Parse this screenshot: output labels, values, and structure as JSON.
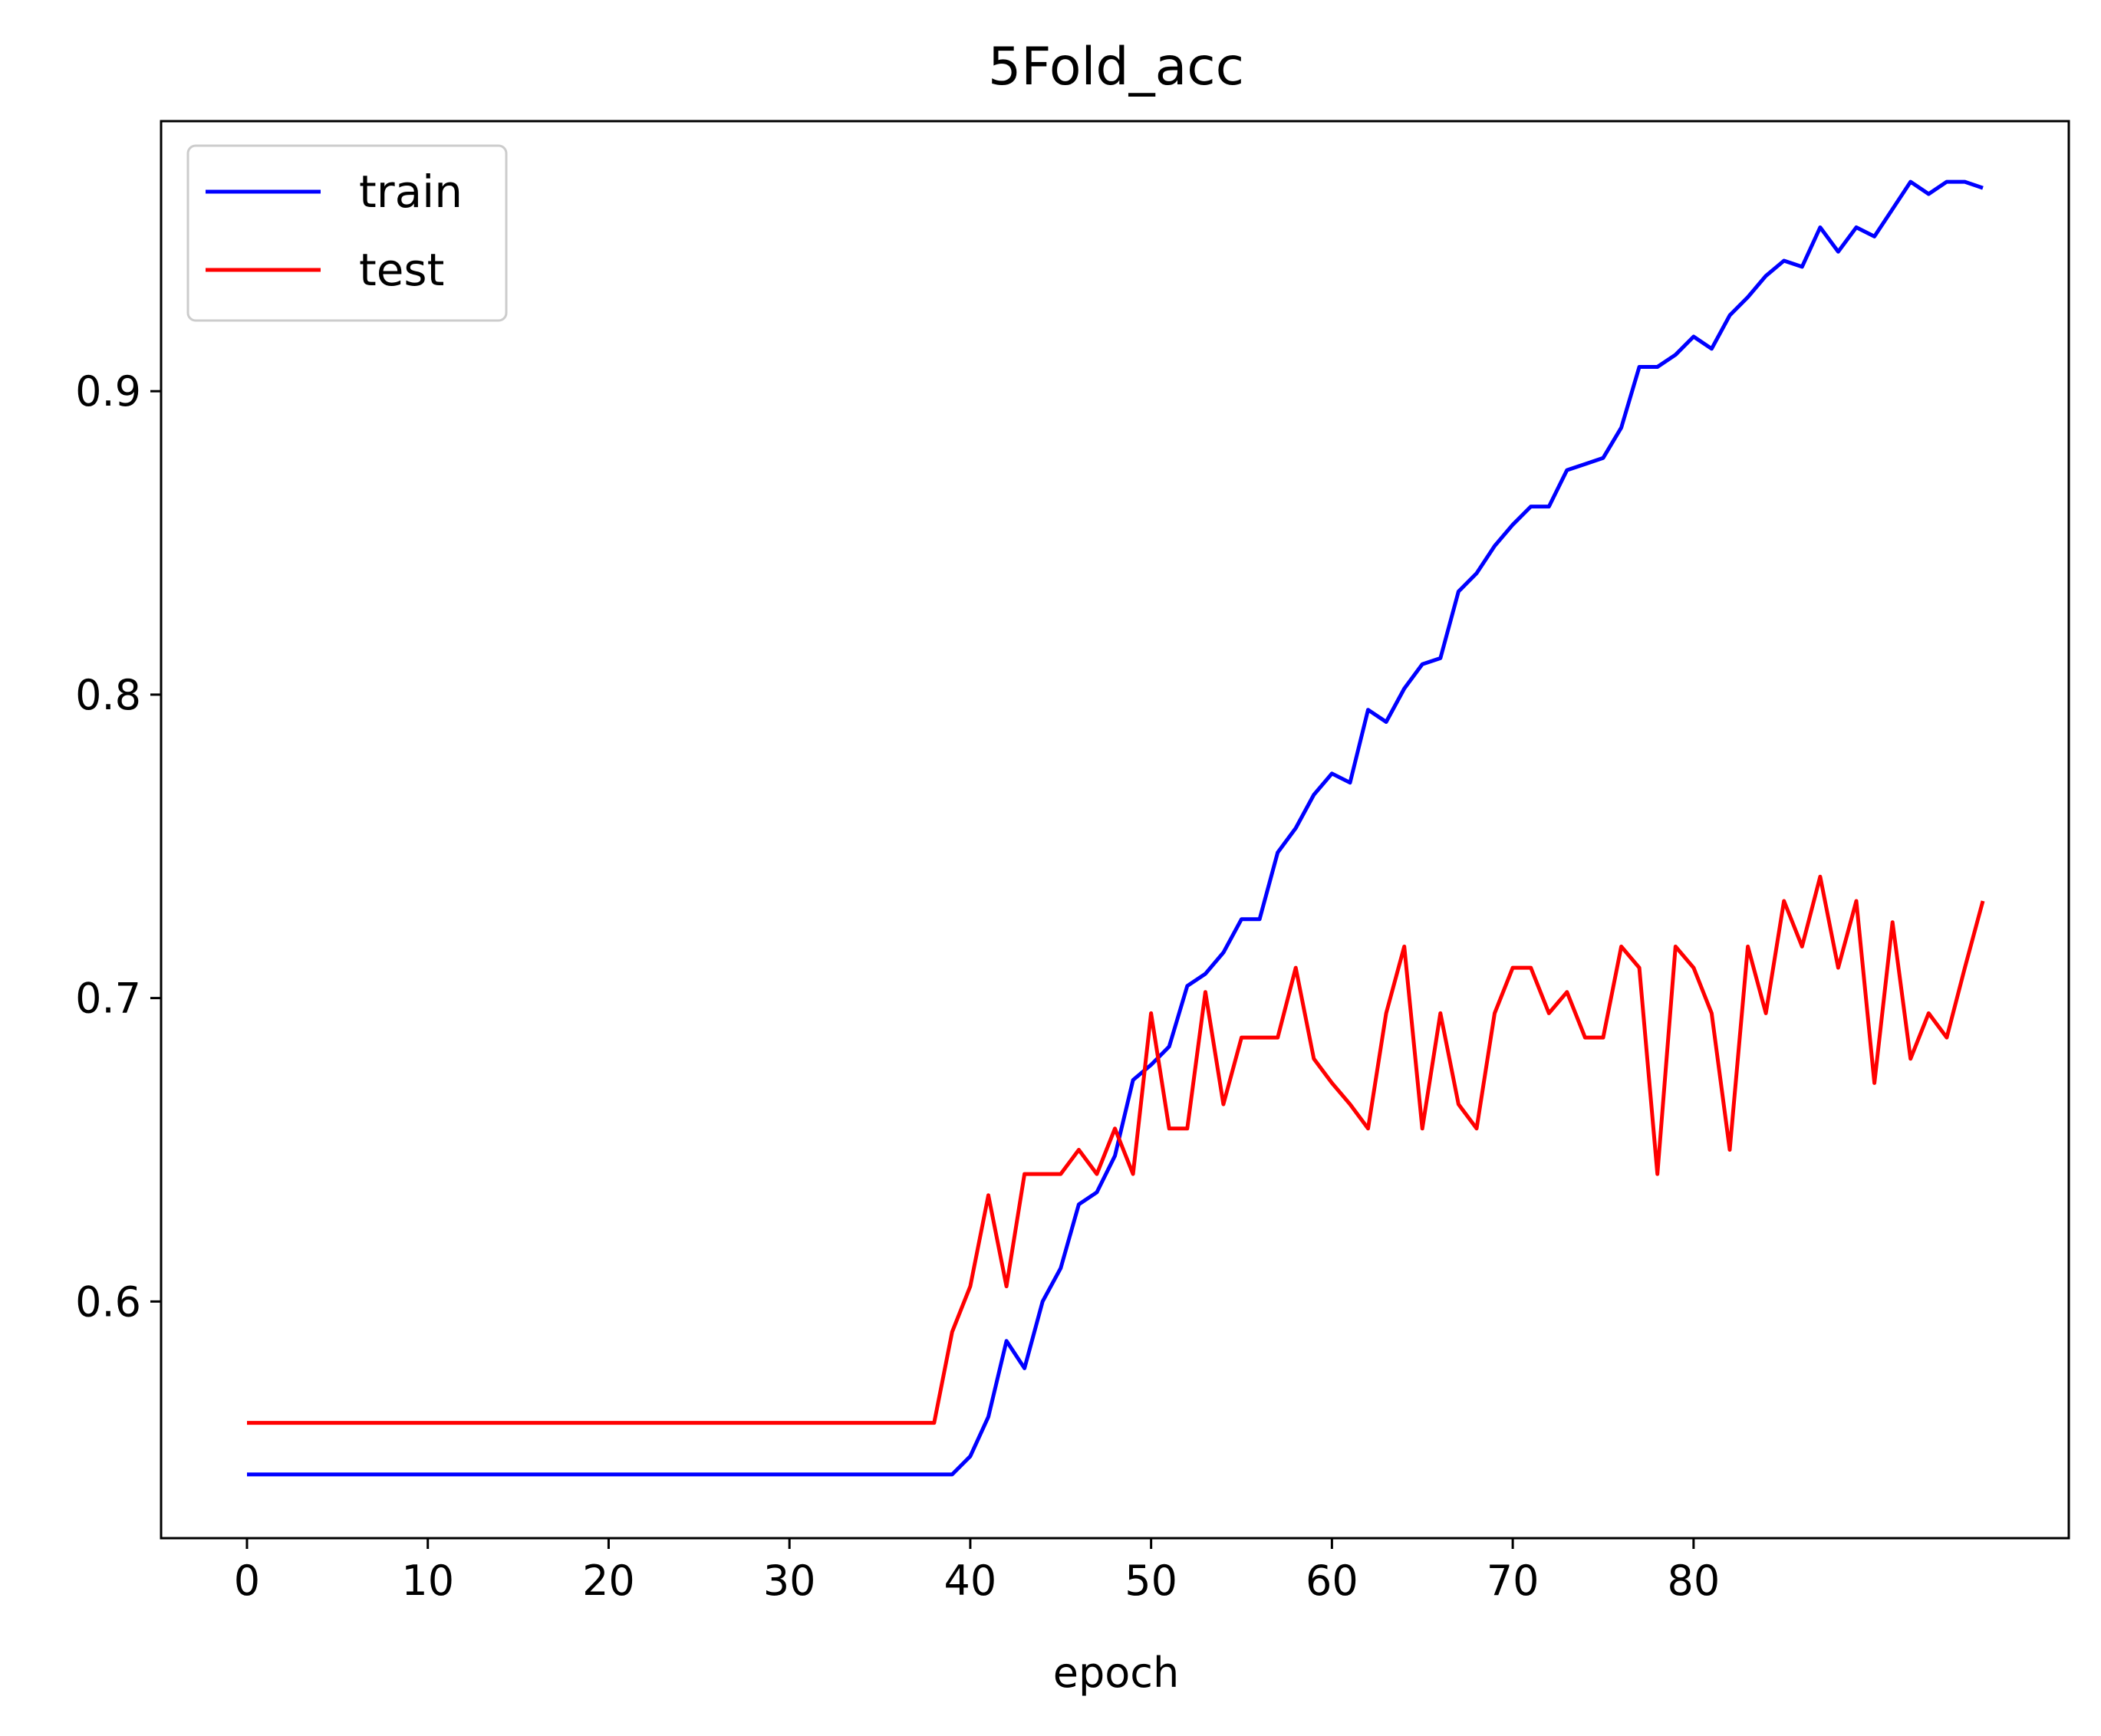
{
  "chart_data": {
    "type": "line",
    "title": "5Fold_acc",
    "xlabel": "epoch",
    "ylabel": "",
    "xlim": [
      -4.75,
      100.75
    ],
    "ylim": [
      0.522,
      0.989
    ],
    "xticks": [
      0,
      10,
      20,
      30,
      40,
      50,
      60,
      70,
      80
    ],
    "xtick_labels": [
      "0",
      "10",
      "20",
      "30",
      "40",
      "50",
      "60",
      "70",
      "80"
    ],
    "yticks": [
      0.6,
      0.7,
      0.8,
      0.9
    ],
    "ytick_labels": [
      "0.6",
      "0.7",
      "0.8",
      "0.9"
    ],
    "grid": false,
    "legend_position": "upper-left",
    "series": [
      {
        "name": "train",
        "color": "#0000ff",
        "x": [
          0,
          1,
          2,
          3,
          4,
          5,
          6,
          7,
          8,
          9,
          10,
          11,
          12,
          13,
          14,
          15,
          16,
          17,
          18,
          19,
          20,
          21,
          22,
          23,
          24,
          25,
          26,
          27,
          28,
          29,
          30,
          31,
          32,
          33,
          34,
          35,
          36,
          37,
          38,
          39,
          40,
          41,
          42,
          43,
          44,
          45,
          46,
          47,
          48,
          49,
          50,
          51,
          52,
          53,
          54,
          55,
          56,
          57,
          58,
          59,
          60,
          61,
          62,
          63,
          64,
          65,
          66,
          67,
          68,
          69,
          70,
          71,
          72,
          73,
          74,
          75,
          76,
          77,
          78,
          79,
          80,
          81,
          82,
          83,
          84,
          85,
          86,
          87,
          88,
          89,
          90,
          91,
          92,
          93,
          94,
          95,
          96
        ],
        "values": [
          0.543,
          0.543,
          0.543,
          0.543,
          0.543,
          0.543,
          0.543,
          0.543,
          0.543,
          0.543,
          0.543,
          0.543,
          0.543,
          0.543,
          0.543,
          0.543,
          0.543,
          0.543,
          0.543,
          0.543,
          0.543,
          0.543,
          0.543,
          0.543,
          0.543,
          0.543,
          0.543,
          0.543,
          0.543,
          0.543,
          0.543,
          0.543,
          0.543,
          0.543,
          0.543,
          0.543,
          0.543,
          0.543,
          0.543,
          0.543,
          0.549,
          0.562,
          0.587,
          0.578,
          0.6,
          0.611,
          0.632,
          0.636,
          0.648,
          0.673,
          0.678,
          0.684,
          0.704,
          0.708,
          0.715,
          0.726,
          0.726,
          0.748,
          0.756,
          0.767,
          0.774,
          0.771,
          0.795,
          0.791,
          0.802,
          0.81,
          0.812,
          0.834,
          0.84,
          0.849,
          0.856,
          0.862,
          0.862,
          0.874,
          0.876,
          0.878,
          0.888,
          0.908,
          0.908,
          0.912,
          0.918,
          0.914,
          0.925,
          0.931,
          0.938,
          0.943,
          0.941,
          0.954,
          0.946,
          0.954,
          0.951,
          0.96,
          0.969,
          0.965,
          0.969,
          0.969,
          0.967
        ]
      },
      {
        "name": "test",
        "color": "#ff0000",
        "x": [
          0,
          1,
          2,
          3,
          4,
          5,
          6,
          7,
          8,
          9,
          10,
          11,
          12,
          13,
          14,
          15,
          16,
          17,
          18,
          19,
          20,
          21,
          22,
          23,
          24,
          25,
          26,
          27,
          28,
          29,
          30,
          31,
          32,
          33,
          34,
          35,
          36,
          37,
          38,
          39,
          40,
          41,
          42,
          43,
          44,
          45,
          46,
          47,
          48,
          49,
          50,
          51,
          52,
          53,
          54,
          55,
          56,
          57,
          58,
          59,
          60,
          61,
          62,
          63,
          64,
          65,
          66,
          67,
          68,
          69,
          70,
          71,
          72,
          73,
          74,
          75,
          76,
          77,
          78,
          79,
          80,
          81,
          82,
          83,
          84,
          85,
          86,
          87,
          88,
          89,
          90,
          91,
          92,
          93,
          94,
          95,
          96
        ],
        "values": [
          0.56,
          0.56,
          0.56,
          0.56,
          0.56,
          0.56,
          0.56,
          0.56,
          0.56,
          0.56,
          0.56,
          0.56,
          0.56,
          0.56,
          0.56,
          0.56,
          0.56,
          0.56,
          0.56,
          0.56,
          0.56,
          0.56,
          0.56,
          0.56,
          0.56,
          0.56,
          0.56,
          0.56,
          0.56,
          0.56,
          0.56,
          0.56,
          0.56,
          0.56,
          0.56,
          0.56,
          0.56,
          0.56,
          0.56,
          0.59,
          0.605,
          0.635,
          0.605,
          0.642,
          0.642,
          0.642,
          0.65,
          0.642,
          0.657,
          0.642,
          0.695,
          0.657,
          0.657,
          0.702,
          0.665,
          0.687,
          0.687,
          0.687,
          0.71,
          0.68,
          0.672,
          0.665,
          0.657,
          0.695,
          0.717,
          0.657,
          0.695,
          0.665,
          0.657,
          0.695,
          0.71,
          0.71,
          0.695,
          0.702,
          0.687,
          0.687,
          0.717,
          0.71,
          0.642,
          0.717,
          0.71,
          0.695,
          0.65,
          0.717,
          0.695,
          0.732,
          0.717,
          0.74,
          0.71,
          0.732,
          0.672,
          0.725,
          0.68,
          0.695,
          0.687,
          0.71,
          0.732
        ]
      }
    ]
  }
}
